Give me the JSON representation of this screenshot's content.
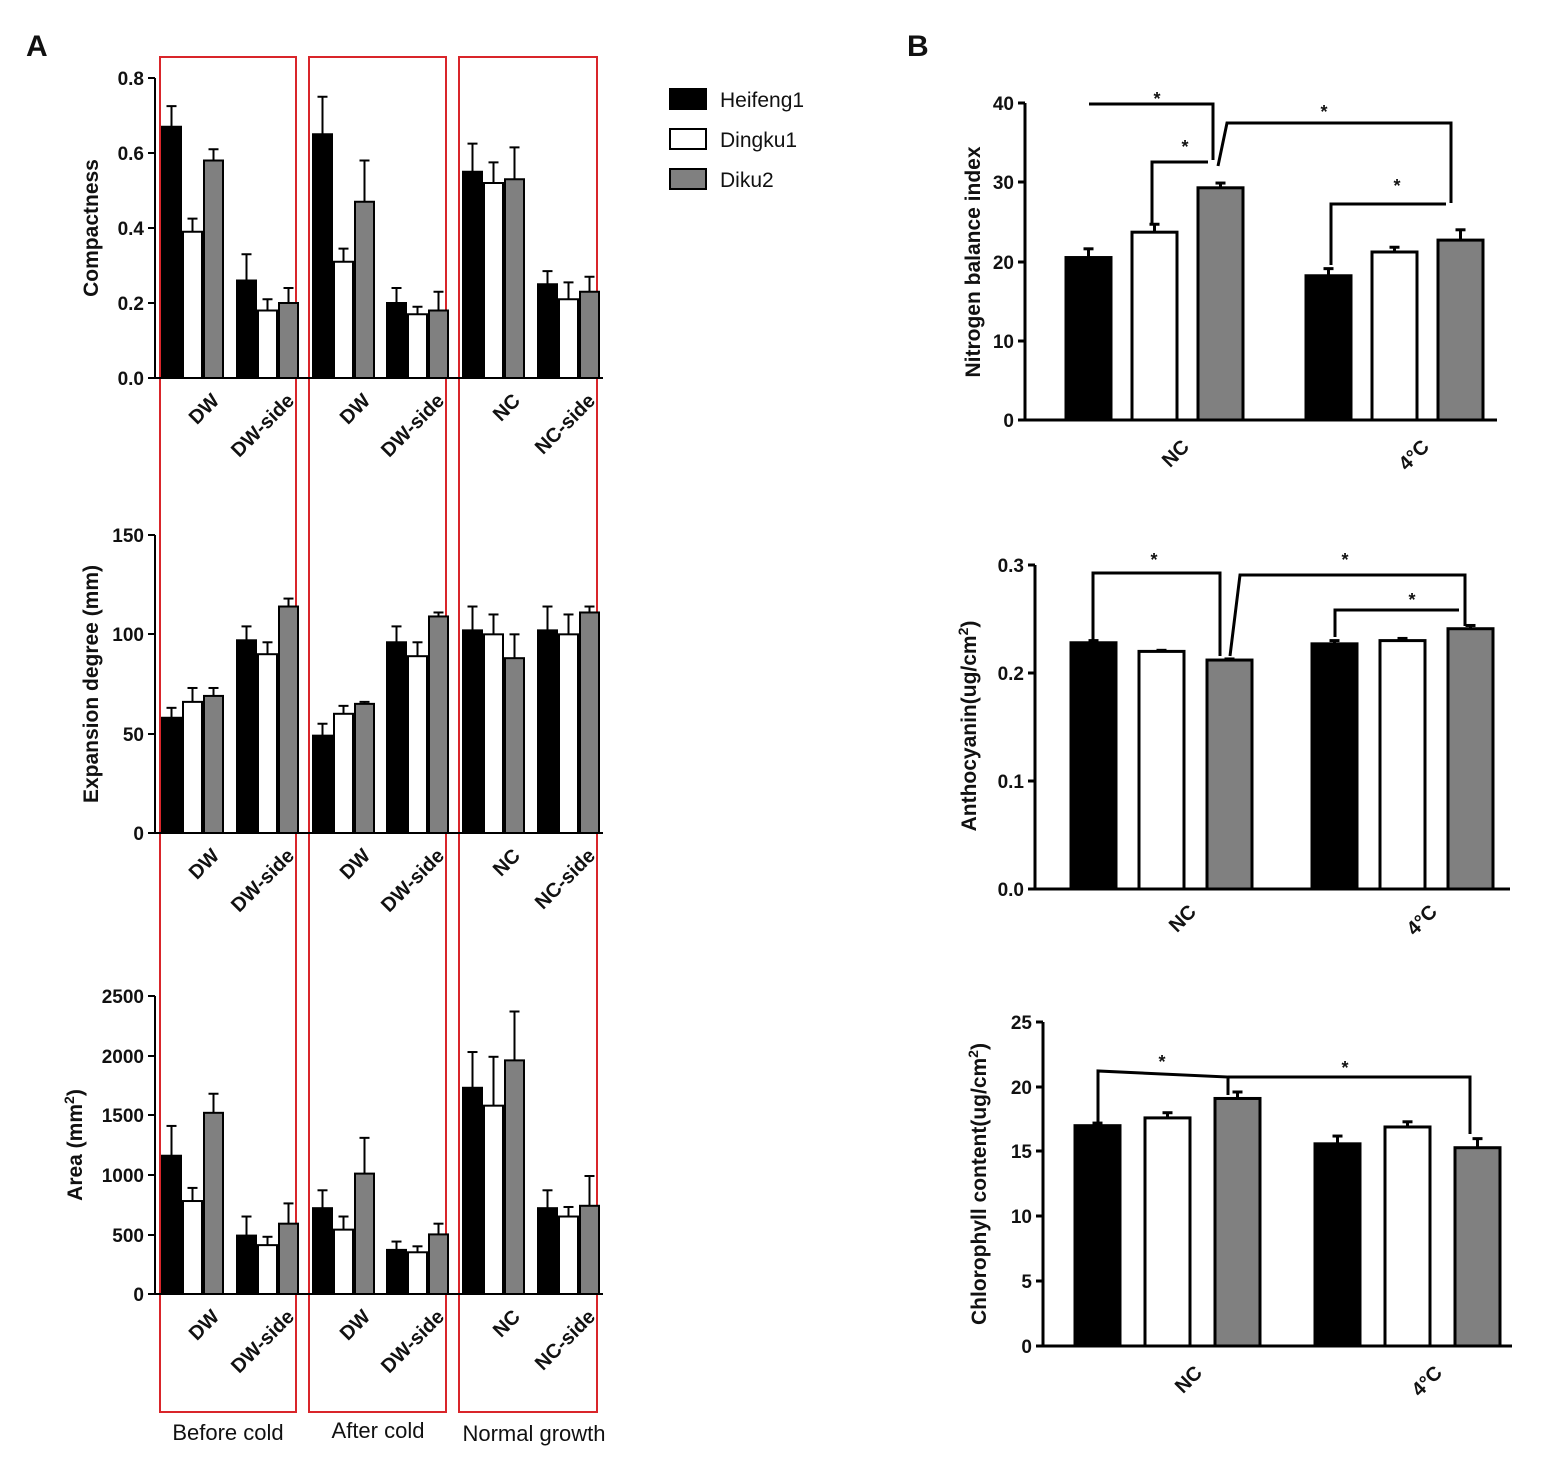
{
  "figure": {
    "panel_a_letter": "A",
    "panel_b_letter": "B"
  },
  "legend": [
    {
      "name": "Heifeng1",
      "color": "#000000"
    },
    {
      "name": "Dingku1",
      "color": "#ffffff"
    },
    {
      "name": "Diku2",
      "color": "#808080"
    }
  ],
  "group_labels": [
    "Before cold",
    "After cold",
    "Normal growth"
  ],
  "chart_data": [
    {
      "id": "a1",
      "type": "bar",
      "ylabel": "Compactness",
      "ylabel_sup": "",
      "ylim": [
        0,
        0.8
      ],
      "yticks": [
        "0.0",
        "0.2",
        "0.4",
        "0.6",
        "0.8"
      ],
      "categories": [
        "DW",
        "DW-side",
        "DW",
        "DW-side",
        "NC",
        "NC-side"
      ],
      "series": [
        {
          "name": "Heifeng1",
          "values": [
            0.67,
            0.26,
            0.65,
            0.2,
            0.55,
            0.25
          ],
          "errors": [
            0.055,
            0.07,
            0.1,
            0.04,
            0.075,
            0.035
          ]
        },
        {
          "name": "Dingku1",
          "values": [
            0.39,
            0.18,
            0.31,
            0.17,
            0.52,
            0.21
          ],
          "errors": [
            0.035,
            0.03,
            0.035,
            0.02,
            0.055,
            0.045
          ]
        },
        {
          "name": "Diku2",
          "values": [
            0.58,
            0.2,
            0.47,
            0.18,
            0.53,
            0.23
          ],
          "errors": [
            0.03,
            0.04,
            0.11,
            0.05,
            0.085,
            0.04
          ]
        }
      ]
    },
    {
      "id": "a2",
      "type": "bar",
      "ylabel": "Expansion degree (mm)",
      "ylabel_sup": "",
      "ylim": [
        0,
        150
      ],
      "yticks": [
        "0",
        "50",
        "100",
        "150"
      ],
      "categories": [
        "DW",
        "DW-side",
        "DW",
        "DW-side",
        "NC",
        "NC-side"
      ],
      "series": [
        {
          "name": "Heifeng1",
          "values": [
            58,
            97,
            49,
            96,
            102,
            102
          ],
          "errors": [
            5,
            7,
            6,
            8,
            12,
            12
          ]
        },
        {
          "name": "Dingku1",
          "values": [
            66,
            90,
            60,
            89,
            100,
            100
          ],
          "errors": [
            7,
            6,
            4,
            7,
            10,
            10
          ]
        },
        {
          "name": "Diku2",
          "values": [
            69,
            114,
            65,
            109,
            88,
            111
          ],
          "errors": [
            4,
            4,
            1,
            2,
            12,
            3
          ]
        }
      ]
    },
    {
      "id": "a3",
      "type": "bar",
      "ylabel": "Area (mm",
      "ylabel_sup": "2",
      "ylim": [
        0,
        2500
      ],
      "yticks": [
        "0",
        "500",
        "1000",
        "1500",
        "2000",
        "2500"
      ],
      "categories": [
        "DW",
        "DW-side",
        "DW",
        "DW-side",
        "NC",
        "NC-side"
      ],
      "series": [
        {
          "name": "Heifeng1",
          "values": [
            1160,
            490,
            720,
            370,
            1730,
            720
          ],
          "errors": [
            250,
            160,
            150,
            70,
            300,
            150
          ]
        },
        {
          "name": "Dingku1",
          "values": [
            780,
            410,
            540,
            350,
            1580,
            650
          ],
          "errors": [
            110,
            70,
            110,
            50,
            410,
            80
          ]
        },
        {
          "name": "Diku2",
          "values": [
            1520,
            590,
            1010,
            500,
            1960,
            740
          ],
          "errors": [
            160,
            170,
            300,
            90,
            410,
            250
          ]
        }
      ]
    },
    {
      "id": "b1",
      "type": "bar",
      "ylabel": "Nitrogen balance index",
      "ylabel_sup": "",
      "ylim": [
        0,
        40
      ],
      "yticks": [
        "0",
        "10",
        "20",
        "30",
        "40"
      ],
      "categories": [
        "NC",
        "4°C"
      ],
      "series": [
        {
          "name": "Heifeng1",
          "values": [
            20.5,
            18.2
          ],
          "errors": [
            1.1,
            0.9
          ]
        },
        {
          "name": "Dingku1",
          "values": [
            23.7,
            21.2
          ],
          "errors": [
            1.0,
            0.6
          ]
        },
        {
          "name": "Diku2",
          "values": [
            29.3,
            22.7
          ],
          "errors": [
            0.6,
            1.3
          ]
        }
      ],
      "annotations": [
        "*",
        "*",
        "*",
        "*"
      ]
    },
    {
      "id": "b2",
      "type": "bar",
      "ylabel": "Anthocyanin(ug/cm",
      "ylabel_sup": "2",
      "ylim": [
        0,
        0.3
      ],
      "yticks": [
        "0.0",
        "0.1",
        "0.2",
        "0.3"
      ],
      "categories": [
        "NC",
        "4°C"
      ],
      "series": [
        {
          "name": "Heifeng1",
          "values": [
            0.228,
            0.227
          ],
          "errors": [
            0.002,
            0.003
          ]
        },
        {
          "name": "Dingku1",
          "values": [
            0.22,
            0.23
          ],
          "errors": [
            0.001,
            0.002
          ]
        },
        {
          "name": "Diku2",
          "values": [
            0.212,
            0.241
          ],
          "errors": [
            0.001,
            0.003
          ]
        }
      ],
      "annotations": [
        "*",
        "*",
        "*"
      ]
    },
    {
      "id": "b3",
      "type": "bar",
      "ylabel": "Chlorophyll content(ug/cm",
      "ylabel_sup": "2",
      "ylim": [
        0,
        25
      ],
      "yticks": [
        "0",
        "5",
        "10",
        "15",
        "20",
        "25"
      ],
      "categories": [
        "NC",
        "4°C"
      ],
      "series": [
        {
          "name": "Heifeng1",
          "values": [
            17.0,
            15.6
          ],
          "errors": [
            0.2,
            0.6
          ]
        },
        {
          "name": "Dingku1",
          "values": [
            17.6,
            16.9
          ],
          "errors": [
            0.4,
            0.4
          ]
        },
        {
          "name": "Diku2",
          "values": [
            19.1,
            15.3
          ],
          "errors": [
            0.5,
            0.7
          ]
        }
      ],
      "annotations": [
        "*",
        "*"
      ]
    }
  ]
}
